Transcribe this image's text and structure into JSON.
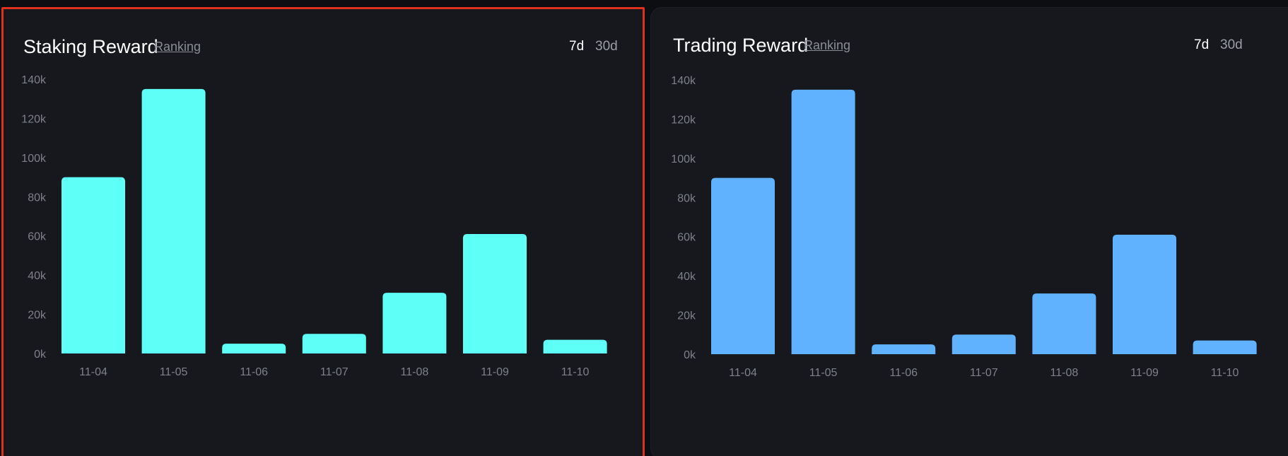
{
  "chart_data": [
    {
      "type": "bar",
      "title": "Staking Reward",
      "link_label": "Ranking",
      "range_options": [
        "7d",
        "30d"
      ],
      "selected_range": "7d",
      "categories": [
        "11-04",
        "11-05",
        "11-06",
        "11-07",
        "11-08",
        "11-09",
        "11-10"
      ],
      "values": [
        90000,
        135000,
        5000,
        10000,
        31000,
        61000,
        7000
      ],
      "y_ticks": [
        "0k",
        "20k",
        "40k",
        "60k",
        "80k",
        "100k",
        "120k",
        "140k"
      ],
      "ylim": [
        0,
        140000
      ],
      "color": "#5efff7",
      "selected": true
    },
    {
      "type": "bar",
      "title": "Trading Reward",
      "link_label": "Ranking",
      "range_options": [
        "7d",
        "30d"
      ],
      "selected_range": "7d",
      "categories": [
        "11-04",
        "11-05",
        "11-06",
        "11-07",
        "11-08",
        "11-09",
        "11-10"
      ],
      "values": [
        90000,
        135000,
        5000,
        10000,
        31000,
        61000,
        7000
      ],
      "y_ticks": [
        "0k",
        "20k",
        "40k",
        "60k",
        "80k",
        "100k",
        "120k",
        "140k"
      ],
      "ylim": [
        0,
        140000
      ],
      "color": "#60b2ff",
      "selected": false
    }
  ]
}
